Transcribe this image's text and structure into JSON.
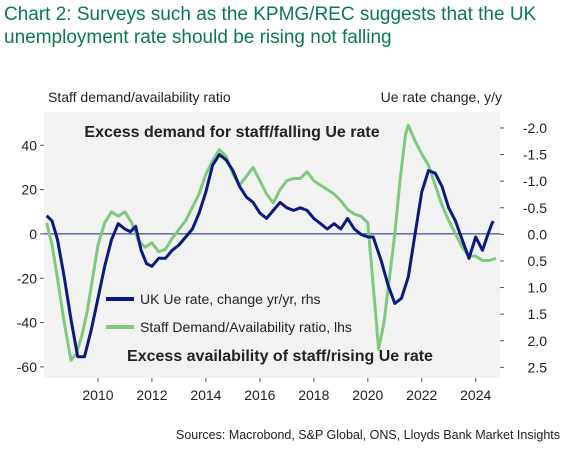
{
  "chart_data": {
    "type": "line",
    "title": "Chart 2:  Surveys such as the KPMG/REC suggests that the UK unemployment rate should be rising not falling",
    "ylabel_left": "Staff demand/availability ratio",
    "ylabel_right": "Ue rate change, y/y",
    "annotations": [
      "Excess demand for staff/falling Ue rate",
      "Excess availability of staff/rising Ue rate"
    ],
    "source": "Sources: Macrobond, S&P Global, ONS, Lloyds Bank Market Insights",
    "xlim": [
      2008.0,
      2024.9
    ],
    "ylim_left": [
      -65,
      55
    ],
    "ylim_right": [
      2.7,
      -2.3
    ],
    "right_axis_inverted": true,
    "x_ticks": [
      "2010",
      "2012",
      "2014",
      "2016",
      "2018",
      "2020",
      "2022",
      "2024"
    ],
    "y_ticks_left": [
      "-60",
      "-40",
      "-20",
      "0",
      "20",
      "40"
    ],
    "y_ticks_right": [
      "2.5",
      "2.0",
      "1.5",
      "1.0",
      "0.5",
      "0.0",
      "-0.5",
      "-1.0",
      "-1.5",
      "-2.0"
    ],
    "legend_position": "lower-left",
    "series": [
      {
        "name": "UK Ue rate, change yr/yr, rhs",
        "axis": "right",
        "color": "#0b1a80",
        "points": [
          [
            2008.1,
            -0.35
          ],
          [
            2008.3,
            -0.25
          ],
          [
            2008.5,
            0.1
          ],
          [
            2008.75,
            0.8
          ],
          [
            2009.0,
            1.6
          ],
          [
            2009.25,
            2.3
          ],
          [
            2009.5,
            2.3
          ],
          [
            2009.75,
            1.8
          ],
          [
            2010.0,
            1.2
          ],
          [
            2010.25,
            0.6
          ],
          [
            2010.5,
            0.1
          ],
          [
            2010.75,
            -0.2
          ],
          [
            2011.0,
            -0.1
          ],
          [
            2011.2,
            -0.05
          ],
          [
            2011.4,
            -0.15
          ],
          [
            2011.6,
            0.3
          ],
          [
            2011.8,
            0.55
          ],
          [
            2012.0,
            0.6
          ],
          [
            2012.25,
            0.45
          ],
          [
            2012.5,
            0.45
          ],
          [
            2012.75,
            0.3
          ],
          [
            2013.0,
            0.2
          ],
          [
            2013.25,
            0.05
          ],
          [
            2013.5,
            -0.1
          ],
          [
            2013.75,
            -0.4
          ],
          [
            2014.0,
            -0.8
          ],
          [
            2014.25,
            -1.3
          ],
          [
            2014.5,
            -1.5
          ],
          [
            2014.75,
            -1.4
          ],
          [
            2015.0,
            -1.2
          ],
          [
            2015.25,
            -0.9
          ],
          [
            2015.5,
            -0.7
          ],
          [
            2015.75,
            -0.6
          ],
          [
            2016.0,
            -0.4
          ],
          [
            2016.25,
            -0.3
          ],
          [
            2016.5,
            -0.45
          ],
          [
            2016.75,
            -0.6
          ],
          [
            2017.0,
            -0.5
          ],
          [
            2017.25,
            -0.45
          ],
          [
            2017.5,
            -0.5
          ],
          [
            2017.75,
            -0.45
          ],
          [
            2018.0,
            -0.3
          ],
          [
            2018.25,
            -0.2
          ],
          [
            2018.5,
            -0.1
          ],
          [
            2018.75,
            -0.2
          ],
          [
            2019.0,
            -0.1
          ],
          [
            2019.25,
            -0.3
          ],
          [
            2019.5,
            -0.1
          ],
          [
            2019.75,
            0.0
          ],
          [
            2020.0,
            0.05
          ],
          [
            2020.2,
            0.05
          ],
          [
            2020.5,
            0.5
          ],
          [
            2020.75,
            0.95
          ],
          [
            2021.0,
            1.3
          ],
          [
            2021.25,
            1.2
          ],
          [
            2021.5,
            0.8
          ],
          [
            2021.75,
            0.0
          ],
          [
            2022.0,
            -0.8
          ],
          [
            2022.25,
            -1.2
          ],
          [
            2022.5,
            -1.15
          ],
          [
            2022.75,
            -0.9
          ],
          [
            2023.0,
            -0.5
          ],
          [
            2023.25,
            -0.25
          ],
          [
            2023.5,
            0.1
          ],
          [
            2023.75,
            0.45
          ],
          [
            2024.0,
            0.05
          ],
          [
            2024.25,
            0.3
          ],
          [
            2024.45,
            0.0
          ],
          [
            2024.6,
            -0.2
          ],
          [
            2024.65,
            -0.25
          ]
        ]
      },
      {
        "name": "Staff Demand/Availability ratio, lhs",
        "axis": "left",
        "color": "#7fc97f",
        "points": [
          [
            2008.1,
            5
          ],
          [
            2008.3,
            -5
          ],
          [
            2008.5,
            -20
          ],
          [
            2008.75,
            -40
          ],
          [
            2009.0,
            -57
          ],
          [
            2009.2,
            -54
          ],
          [
            2009.4,
            -46
          ],
          [
            2009.6,
            -35
          ],
          [
            2009.8,
            -20
          ],
          [
            2010.0,
            -5
          ],
          [
            2010.25,
            5
          ],
          [
            2010.5,
            10
          ],
          [
            2010.75,
            8
          ],
          [
            2011.0,
            10
          ],
          [
            2011.25,
            5
          ],
          [
            2011.5,
            -3
          ],
          [
            2011.75,
            -6
          ],
          [
            2012.0,
            -4
          ],
          [
            2012.25,
            -8
          ],
          [
            2012.5,
            -7
          ],
          [
            2012.75,
            -2
          ],
          [
            2013.0,
            2
          ],
          [
            2013.25,
            6
          ],
          [
            2013.5,
            12
          ],
          [
            2013.75,
            18
          ],
          [
            2014.0,
            27
          ],
          [
            2014.25,
            33
          ],
          [
            2014.5,
            38
          ],
          [
            2014.75,
            35
          ],
          [
            2015.0,
            27
          ],
          [
            2015.25,
            22
          ],
          [
            2015.5,
            26
          ],
          [
            2015.75,
            30
          ],
          [
            2016.0,
            24
          ],
          [
            2016.25,
            18
          ],
          [
            2016.5,
            14
          ],
          [
            2016.75,
            20
          ],
          [
            2017.0,
            24
          ],
          [
            2017.25,
            25
          ],
          [
            2017.5,
            25
          ],
          [
            2017.75,
            28
          ],
          [
            2018.0,
            24
          ],
          [
            2018.25,
            22
          ],
          [
            2018.5,
            20
          ],
          [
            2018.75,
            18
          ],
          [
            2019.0,
            15
          ],
          [
            2019.25,
            11
          ],
          [
            2019.5,
            9
          ],
          [
            2019.75,
            8
          ],
          [
            2020.0,
            5
          ],
          [
            2020.25,
            -30
          ],
          [
            2020.4,
            -52
          ],
          [
            2020.6,
            -40
          ],
          [
            2020.8,
            -20
          ],
          [
            2021.0,
            0
          ],
          [
            2021.2,
            25
          ],
          [
            2021.4,
            45
          ],
          [
            2021.5,
            49
          ],
          [
            2021.75,
            42
          ],
          [
            2022.0,
            36
          ],
          [
            2022.25,
            31
          ],
          [
            2022.5,
            22
          ],
          [
            2022.75,
            13
          ],
          [
            2023.0,
            6
          ],
          [
            2023.25,
            0
          ],
          [
            2023.5,
            -6
          ],
          [
            2023.75,
            -10
          ],
          [
            2024.0,
            -10
          ],
          [
            2024.25,
            -12
          ],
          [
            2024.5,
            -12
          ],
          [
            2024.75,
            -11
          ]
        ]
      }
    ]
  }
}
